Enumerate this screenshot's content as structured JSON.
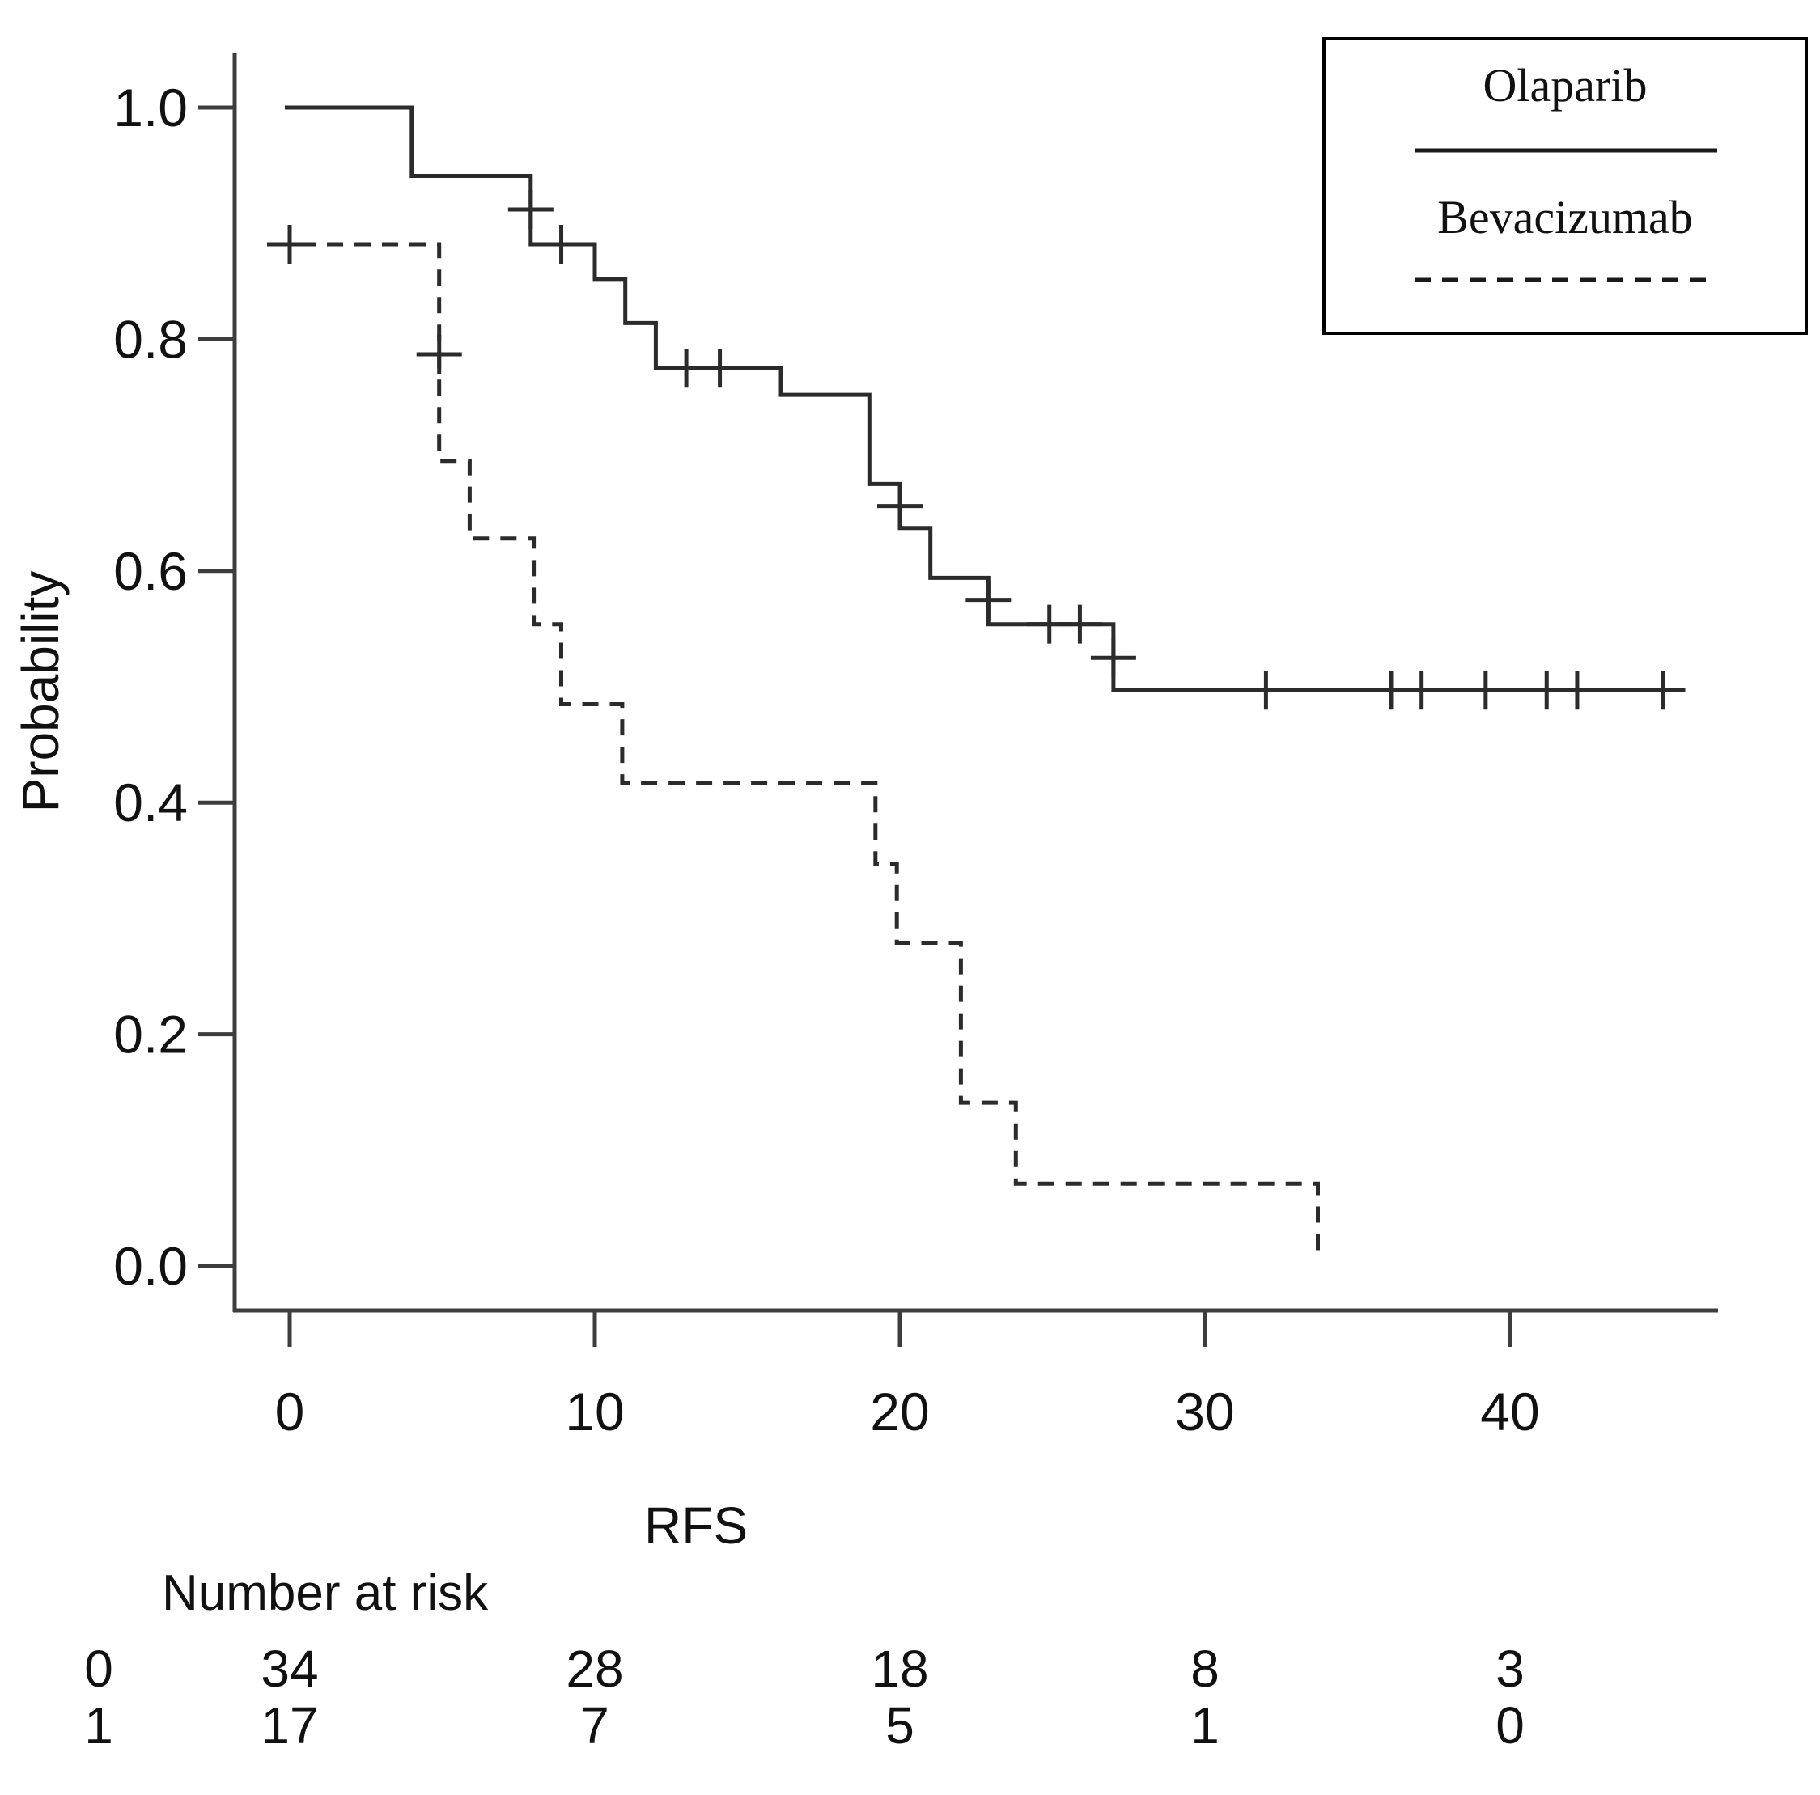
{
  "chart_data": {
    "type": "line",
    "subtype": "kaplan-meier-step",
    "title": "",
    "xlabel": "RFS",
    "ylabel": "Probability",
    "xlim": [
      0,
      46
    ],
    "ylim": [
      0.0,
      1.0
    ],
    "x_ticks": [
      "0",
      "10",
      "20",
      "30",
      "40"
    ],
    "x_tick_values": [
      0,
      10,
      20,
      30,
      40
    ],
    "y_ticks": [
      "0.0",
      "0.2",
      "0.4",
      "0.6",
      "0.8",
      "1.0"
    ],
    "y_tick_values": [
      0.0,
      0.2,
      0.4,
      0.6,
      0.8,
      1.0
    ],
    "grid": false,
    "legend_position": "top-right",
    "line_color": "#2b2b2b",
    "series": [
      {
        "name": "Olaparib",
        "style": "solid",
        "steps": [
          [
            0,
            1.0
          ],
          [
            4.0,
            1.0
          ],
          [
            4.0,
            0.941
          ],
          [
            7.9,
            0.941
          ],
          [
            7.9,
            0.882
          ],
          [
            10.0,
            0.882
          ],
          [
            10.0,
            0.852
          ],
          [
            11.0,
            0.852
          ],
          [
            11.0,
            0.814
          ],
          [
            12.0,
            0.814
          ],
          [
            12.0,
            0.775
          ],
          [
            16.1,
            0.775
          ],
          [
            16.1,
            0.752
          ],
          [
            19.0,
            0.752
          ],
          [
            19.0,
            0.675
          ],
          [
            20.0,
            0.675
          ],
          [
            20.0,
            0.637
          ],
          [
            21.0,
            0.637
          ],
          [
            21.0,
            0.594
          ],
          [
            22.9,
            0.594
          ],
          [
            22.9,
            0.554
          ],
          [
            27.0,
            0.554
          ],
          [
            27.0,
            0.497
          ],
          [
            45.6,
            0.497
          ]
        ],
        "censors": [
          [
            7.9,
            0.912
          ],
          [
            8.9,
            0.882
          ],
          [
            13.0,
            0.775
          ],
          [
            14.1,
            0.775
          ],
          [
            20.0,
            0.656
          ],
          [
            22.9,
            0.575
          ],
          [
            24.9,
            0.554
          ],
          [
            25.9,
            0.554
          ],
          [
            27.0,
            0.525
          ],
          [
            32.0,
            0.497
          ],
          [
            36.1,
            0.497
          ],
          [
            37.1,
            0.497
          ],
          [
            39.2,
            0.497
          ],
          [
            41.2,
            0.497
          ],
          [
            42.2,
            0.497
          ],
          [
            45.0,
            0.497
          ]
        ]
      },
      {
        "name": "Bevacizumab",
        "style": "dashed",
        "steps": [
          [
            0,
            0.882
          ],
          [
            4.9,
            0.882
          ],
          [
            4.9,
            0.695
          ],
          [
            5.9,
            0.695
          ],
          [
            5.9,
            0.628
          ],
          [
            8.0,
            0.628
          ],
          [
            8.0,
            0.554
          ],
          [
            8.9,
            0.554
          ],
          [
            8.9,
            0.485
          ],
          [
            10.9,
            0.485
          ],
          [
            10.9,
            0.417
          ],
          [
            19.2,
            0.417
          ],
          [
            19.2,
            0.347
          ],
          [
            19.9,
            0.347
          ],
          [
            19.9,
            0.279
          ],
          [
            22.0,
            0.279
          ],
          [
            22.0,
            0.141
          ],
          [
            23.8,
            0.141
          ],
          [
            23.8,
            0.071
          ],
          [
            33.7,
            0.071
          ],
          [
            33.7,
            0.01
          ]
        ],
        "censors": [
          [
            0.0,
            0.882
          ],
          [
            4.9,
            0.787
          ]
        ]
      }
    ],
    "number_at_risk": {
      "header": "Number at risk",
      "time_points": [
        0,
        10,
        20,
        30,
        40
      ],
      "rows": [
        {
          "label": "0",
          "counts": [
            "34",
            "28",
            "18",
            "8",
            "3"
          ]
        },
        {
          "label": "1",
          "counts": [
            "17",
            "7",
            "5",
            "1",
            "0"
          ]
        }
      ]
    }
  }
}
